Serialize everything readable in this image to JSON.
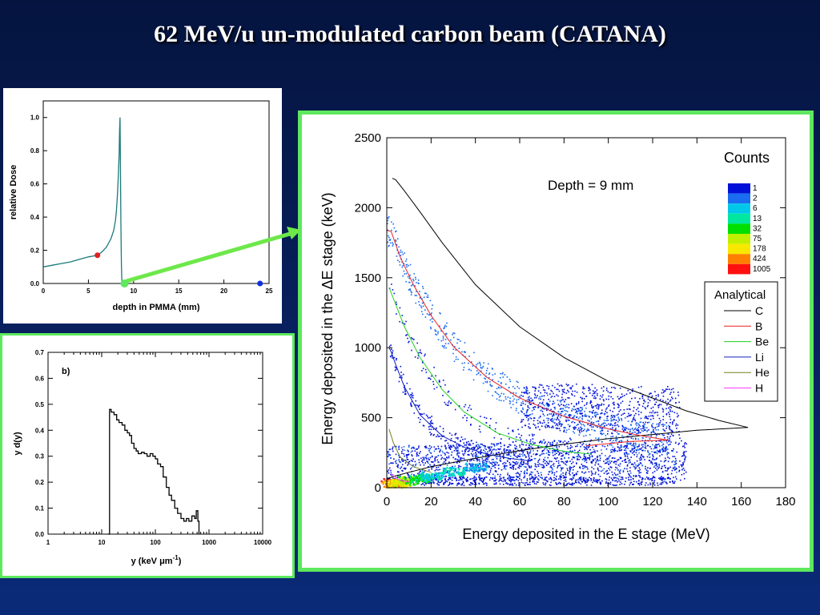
{
  "slide": {
    "title": "62 MeV/u un-modulated carbon beam (CATANA)"
  },
  "colors": {
    "background": "#0a2a78",
    "accent_border": "#5ee85e",
    "arrow": "#6de84a"
  },
  "chart_data": [
    {
      "type": "line",
      "title": "",
      "xlabel": "depth in PMMA (mm)",
      "ylabel": "relative Dose",
      "xlim": [
        0,
        25
      ],
      "ylim": [
        0,
        1.1
      ],
      "xticks": [
        "0",
        "5",
        "10",
        "15",
        "20",
        "25"
      ],
      "yticks": [
        "0.0",
        "0.2",
        "0.4",
        "0.6",
        "0.8",
        "1.0"
      ],
      "line_color": "#1a7a7a",
      "series": [
        {
          "x": [
            0,
            1,
            2,
            3,
            4,
            5,
            6,
            6.5,
            7,
            7.5,
            7.8,
            8.0,
            8.1,
            8.2,
            8.3,
            8.4,
            8.45,
            8.5,
            8.55,
            8.6,
            8.65,
            8.7,
            8.8,
            9.0
          ],
          "y": [
            0.1,
            0.11,
            0.12,
            0.13,
            0.145,
            0.16,
            0.17,
            0.19,
            0.22,
            0.27,
            0.32,
            0.38,
            0.44,
            0.52,
            0.63,
            0.78,
            0.92,
            1.0,
            0.7,
            0.35,
            0.12,
            0.02,
            0.0,
            0.0
          ]
        }
      ],
      "markers": [
        {
          "x": 6.0,
          "y": 0.17,
          "color": "#e02020"
        },
        {
          "x": 9.0,
          "y": 0.0,
          "color": "#5ee85e"
        },
        {
          "x": 24.0,
          "y": 0.0,
          "color": "#1030e0"
        }
      ]
    },
    {
      "type": "line",
      "title": "",
      "panel_label": "b)",
      "xlabel": "y (keV μm",
      "xlabel_sup": "-1",
      "xlabel_end": ")",
      "ylabel": "y d(y)",
      "xscale": "log",
      "xlim": [
        1,
        10000
      ],
      "ylim": [
        0,
        0.7
      ],
      "xticks": [
        "1",
        "10",
        "100",
        "1000",
        "10000"
      ],
      "yticks": [
        "0.0",
        "0.1",
        "0.2",
        "0.3",
        "0.4",
        "0.5",
        "0.6",
        "0.7"
      ],
      "series": [
        {
          "x": [
            13,
            14,
            15,
            17,
            19,
            21,
            24,
            27,
            30,
            33,
            36,
            40,
            44,
            48,
            55,
            62,
            70,
            80,
            90,
            100,
            110,
            125,
            140,
            160,
            180,
            200,
            230,
            260,
            300,
            340,
            380,
            420,
            480,
            540,
            580,
            620,
            650
          ],
          "y": [
            0.0,
            0.48,
            0.47,
            0.46,
            0.44,
            0.43,
            0.42,
            0.4,
            0.39,
            0.38,
            0.35,
            0.33,
            0.32,
            0.31,
            0.315,
            0.31,
            0.3,
            0.31,
            0.3,
            0.29,
            0.27,
            0.26,
            0.22,
            0.18,
            0.15,
            0.13,
            0.1,
            0.08,
            0.06,
            0.05,
            0.06,
            0.05,
            0.07,
            0.06,
            0.09,
            0.05,
            0.0
          ]
        }
      ]
    },
    {
      "type": "scatter",
      "title": "",
      "xlabel": "Energy deposited in the E stage (MeV)",
      "ylabel": "Energy deposited in the ΔE stage (keV)",
      "xlim": [
        0,
        180
      ],
      "ylim": [
        0,
        2500
      ],
      "xticks": [
        "0",
        "20",
        "40",
        "60",
        "80",
        "100",
        "120",
        "140",
        "160",
        "180"
      ],
      "yticks": [
        "0",
        "500",
        "1000",
        "1500",
        "2000",
        "2500"
      ],
      "annotation": "Depth = 9 mm",
      "colorbar": {
        "title": "Counts",
        "levels": [
          "1",
          "2",
          "6",
          "13",
          "32",
          "75",
          "178",
          "424",
          "1005"
        ],
        "colors": [
          "#0010d8",
          "#1a6cf0",
          "#00c8e8",
          "#00e8a0",
          "#00e000",
          "#c0f000",
          "#f8e800",
          "#ff8000",
          "#ff1010"
        ]
      },
      "legend": {
        "title": "Analytical",
        "position": "right",
        "entries": [
          {
            "label": "C",
            "color": "#000000"
          },
          {
            "label": "B",
            "color": "#e82020"
          },
          {
            "label": "Be",
            "color": "#20d020"
          },
          {
            "label": "Li",
            "color": "#1020c0"
          },
          {
            "label": "He",
            "color": "#708020"
          },
          {
            "label": "H",
            "color": "#ff40ff"
          }
        ]
      },
      "series": [
        {
          "name": "C",
          "color": "#000000",
          "x": [
            163,
            150,
            135,
            120,
            100,
            80,
            60,
            40,
            25,
            15,
            8,
            4,
            2.5
          ],
          "y": [
            430,
            480,
            550,
            640,
            760,
            930,
            1150,
            1450,
            1750,
            1970,
            2120,
            2200,
            2210
          ]
        },
        {
          "name": "C-upper",
          "color": "#000000",
          "x": [
            163,
            140,
            120,
            100,
            80,
            60,
            40,
            20,
            10,
            3,
            0
          ],
          "y": [
            430,
            410,
            380,
            350,
            310,
            265,
            210,
            150,
            110,
            80,
            60
          ]
        },
        {
          "name": "B",
          "color": "#e82020",
          "x": [
            127,
            115,
            100,
            80,
            60,
            45,
            30,
            20,
            12,
            6,
            2,
            0
          ],
          "y": [
            340,
            370,
            420,
            510,
            640,
            790,
            1010,
            1230,
            1450,
            1650,
            1830,
            1840
          ]
        },
        {
          "name": "B-upper",
          "color": "#e82020",
          "x": [
            127,
            110,
            90
          ],
          "y": [
            340,
            330,
            300
          ]
        },
        {
          "name": "Be",
          "color": "#20d020",
          "x": [
            92,
            80,
            65,
            50,
            35,
            25,
            15,
            8,
            3,
            1
          ],
          "y": [
            240,
            260,
            310,
            390,
            540,
            700,
            930,
            1150,
            1350,
            1430
          ]
        },
        {
          "name": "Li",
          "color": "#1020c0",
          "x": [
            65,
            55,
            45,
            35,
            25,
            15,
            8,
            4,
            2,
            1
          ],
          "y": [
            190,
            210,
            240,
            290,
            370,
            520,
            720,
            880,
            970,
            1000
          ]
        },
        {
          "name": "He",
          "color": "#708020",
          "x": [
            20,
            12,
            6,
            3,
            1
          ],
          "y": [
            110,
            150,
            220,
            320,
            420
          ]
        },
        {
          "name": "H",
          "color": "#ff40ff",
          "x": [
            10,
            5,
            2
          ],
          "y": [
            40,
            60,
            100
          ]
        }
      ]
    }
  ]
}
